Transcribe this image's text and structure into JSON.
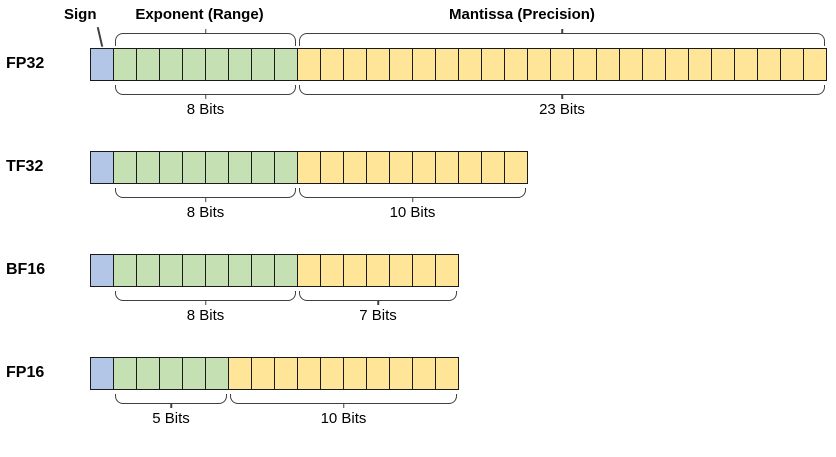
{
  "header": {
    "sign": "Sign",
    "exponent": "Exponent (Range)",
    "mantissa": "Mantissa (Precision)"
  },
  "colors": {
    "sign": "#b3c6e7",
    "exponent": "#c5e0b3",
    "mantissa": "#ffe598",
    "line": "#404040",
    "cell_border": "#1a1a1a"
  },
  "rows": [
    {
      "name": "FP32",
      "sign_bits": 1,
      "exponent_bits": 8,
      "mantissa_bits": 23,
      "exponent_label": "8 Bits",
      "mantissa_label": "23 Bits"
    },
    {
      "name": "TF32",
      "sign_bits": 1,
      "exponent_bits": 8,
      "mantissa_bits": 10,
      "exponent_label": "8 Bits",
      "mantissa_label": "10 Bits"
    },
    {
      "name": "BF16",
      "sign_bits": 1,
      "exponent_bits": 8,
      "mantissa_bits": 7,
      "exponent_label": "8 Bits",
      "mantissa_label": "7 Bits"
    },
    {
      "name": "FP16",
      "sign_bits": 1,
      "exponent_bits": 5,
      "mantissa_bits": 10,
      "exponent_label": "5 Bits",
      "mantissa_label": "10 Bits"
    }
  ]
}
